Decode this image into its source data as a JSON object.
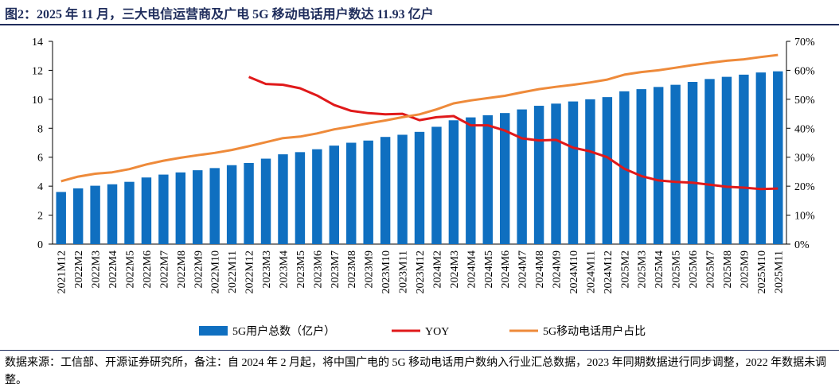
{
  "chart_data": {
    "type": "bar_line",
    "title": "图2：2025 年 11 月，三大电信运营商及广电 5G 移动电话用户数达 11.93 亿户",
    "note": "数据来源：工信部、开源证券研究所，备注：自 2024 年 2 月起，将中国广电的 5G 移动电话用户数纳入行业汇总数据，2023 年同期数据进行同步调整，2022 年数据未调整。",
    "categories": [
      "2021M12",
      "2022M2",
      "2022M3",
      "2022M4",
      "2022M5",
      "2022M6",
      "2022M7",
      "2022M8",
      "2022M9",
      "2022M10",
      "2022M11",
      "2022M12",
      "2023M3",
      "2023M4",
      "2023M5",
      "2023M6",
      "2023M7",
      "2023M8",
      "2023M9",
      "2023M10",
      "2023M11",
      "2023M12",
      "2024M2",
      "2024M3",
      "2024M4",
      "2024M5",
      "2024M6",
      "2024M7",
      "2024M8",
      "2024M9",
      "2024M10",
      "2024M11",
      "2024M12",
      "2025M2",
      "2025M3",
      "2025M4",
      "2025M5",
      "2025M6",
      "2025M7",
      "2025M8",
      "2025M9",
      "2025M10",
      "2025M11"
    ],
    "series": [
      {
        "name": "5G用户总数（亿户）",
        "type": "bar",
        "color": "#0f6fc0",
        "values": [
          3.6,
          3.85,
          4.03,
          4.13,
          4.3,
          4.6,
          4.8,
          4.95,
          5.1,
          5.25,
          5.45,
          5.6,
          5.9,
          6.2,
          6.35,
          6.55,
          6.8,
          7.0,
          7.15,
          7.4,
          7.55,
          7.75,
          8.1,
          8.55,
          8.75,
          8.9,
          9.05,
          9.3,
          9.55,
          9.7,
          9.85,
          10.0,
          10.15,
          10.55,
          10.7,
          10.85,
          11.0,
          11.2,
          11.4,
          11.55,
          11.7,
          11.85,
          11.93
        ]
      },
      {
        "name": "YOY",
        "type": "line",
        "axis": "y2",
        "color": "#e0191a",
        "values": [
          null,
          null,
          null,
          null,
          null,
          null,
          null,
          null,
          null,
          null,
          null,
          57.7,
          55.3,
          55.0,
          53.8,
          51.3,
          48.0,
          46.0,
          45.2,
          44.8,
          45.0,
          42.8,
          43.8,
          44.2,
          41.0,
          41.0,
          39.2,
          36.5,
          35.8,
          36.0,
          33.3,
          32.0,
          30.0,
          26.0,
          23.5,
          22.0,
          21.5,
          21.2,
          20.5,
          19.8,
          19.5,
          19.0,
          19.2
        ]
      },
      {
        "name": "5G移动电话用户占比",
        "type": "line",
        "axis": "y2",
        "color": "#ee8a3a",
        "values": [
          21.7,
          23.3,
          24.3,
          24.8,
          25.9,
          27.5,
          28.8,
          29.8,
          30.7,
          31.5,
          32.5,
          33.8,
          35.2,
          36.6,
          37.1,
          38.2,
          39.6,
          40.6,
          41.7,
          42.7,
          43.8,
          44.8,
          46.5,
          48.6,
          49.6,
          50.4,
          51.2,
          52.4,
          53.5,
          54.3,
          55.0,
          55.8,
          56.8,
          58.5,
          59.4,
          60.0,
          60.9,
          61.8,
          62.6,
          63.3,
          63.8,
          64.6,
          65.3
        ]
      }
    ],
    "ylim": [
      0,
      14
    ],
    "yticks": [
      0,
      2,
      4,
      6,
      8,
      10,
      12,
      14
    ],
    "y2lim": [
      0,
      70
    ],
    "y2ticks": [
      {
        "value": 0,
        "label": "0%"
      },
      {
        "value": 10,
        "label": "10%"
      },
      {
        "value": 20,
        "label": "20%"
      },
      {
        "value": 30,
        "label": "30%"
      },
      {
        "value": 40,
        "label": "40%"
      },
      {
        "value": 50,
        "label": "50%"
      },
      {
        "value": 60,
        "label": "60%"
      },
      {
        "value": 70,
        "label": "70%"
      }
    ],
    "legend": "bottom"
  }
}
